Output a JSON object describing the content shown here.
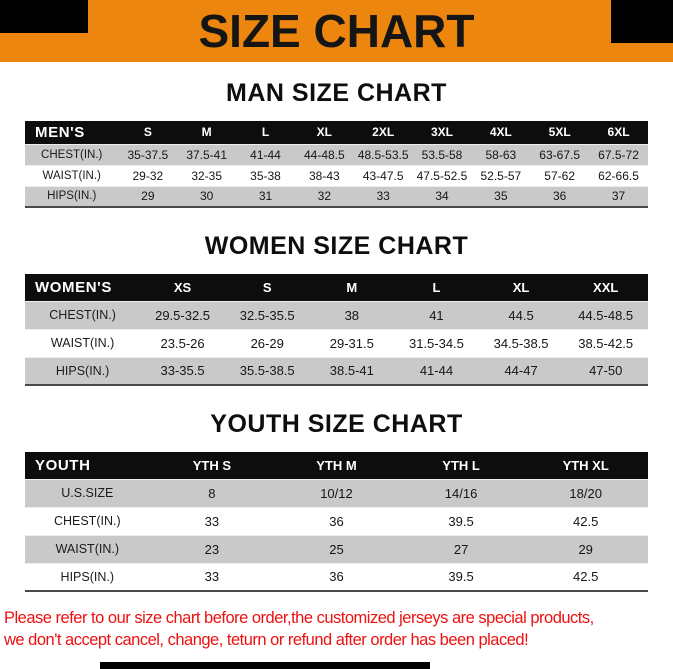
{
  "colors": {
    "banner_bg": "#ED860E",
    "header_bg": "#0d0d0d",
    "stripe_gray": "#c9c9c9",
    "footer_red": "#ee1111"
  },
  "banner": {
    "title": "SIZE CHART"
  },
  "tables": [
    {
      "id": "men",
      "title": "MAN SIZE CHART",
      "header": [
        "MEN'S",
        "S",
        "M",
        "L",
        "XL",
        "2XL",
        "3XL",
        "4XL",
        "5XL",
        "6XL"
      ],
      "rows": [
        [
          "CHEST(IN.)",
          "35-37.5",
          "37.5-41",
          "41-44",
          "44-48.5",
          "48.5-53.5",
          "53.5-58",
          "58-63",
          "63-67.5",
          "67.5-72"
        ],
        [
          "WAIST(IN.)",
          "29-32",
          "32-35",
          "35-38",
          "38-43",
          "43-47.5",
          "47.5-52.5",
          "52.5-57",
          "57-62",
          "62-66.5"
        ],
        [
          "HIPS(IN.)",
          "29",
          "30",
          "31",
          "32",
          "33",
          "34",
          "35",
          "36",
          "37"
        ]
      ]
    },
    {
      "id": "women",
      "title": "WOMEN SIZE CHART",
      "header": [
        "WOMEN'S",
        "XS",
        "S",
        "M",
        "L",
        "XL",
        "XXL"
      ],
      "rows": [
        [
          "CHEST(IN.)",
          "29.5-32.5",
          "32.5-35.5",
          "38",
          "41",
          "44.5",
          "44.5-48.5"
        ],
        [
          "WAIST(IN.)",
          "23.5-26",
          "26-29",
          "29-31.5",
          "31.5-34.5",
          "34.5-38.5",
          "38.5-42.5"
        ],
        [
          "HIPS(IN.)",
          "33-35.5",
          "35.5-38.5",
          "38.5-41",
          "41-44",
          "44-47",
          "47-50"
        ]
      ]
    },
    {
      "id": "youth",
      "title": "YOUTH SIZE CHART",
      "header": [
        "YOUTH",
        "YTH S",
        "YTH M",
        "YTH L",
        "YTH XL"
      ],
      "rows": [
        [
          "U.S.SIZE",
          "8",
          "10/12",
          "14/16",
          "18/20"
        ],
        [
          "CHEST(IN.)",
          "33",
          "36",
          "39.5",
          "42.5"
        ],
        [
          "WAIST(IN.)",
          "23",
          "25",
          "27",
          "29"
        ],
        [
          "HIPS(IN.)",
          "33",
          "36",
          "39.5",
          "42.5"
        ]
      ]
    }
  ],
  "footer": {
    "line1": "Please refer to our size chart before order,the customized jerseys are special products,",
    "line2": "we don't accept cancel, change, teturn or refund after order has been placed!"
  }
}
